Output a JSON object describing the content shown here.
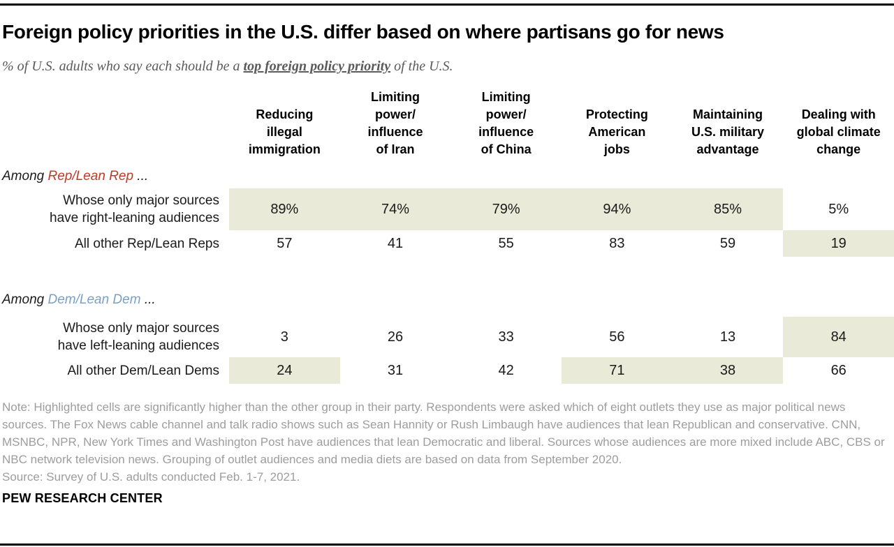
{
  "colors": {
    "highlight": "#e9ebd8",
    "rep": "#bf3a27",
    "dem": "#7aa0c4"
  },
  "header": {
    "title": "Foreign policy priorities in the U.S. differ based on where partisans go for news",
    "subtitle_prefix": "% of U.S. adults who say each should be a ",
    "subtitle_emphasis": "top foreign policy priority",
    "subtitle_suffix": " of the U.S."
  },
  "table": {
    "columns": [
      "Reducing\nillegal\nimmigration",
      "Limiting\npower/\ninfluence\nof Iran",
      "Limiting\npower/\ninfluence\nof China",
      "Protecting\nAmerican\njobs",
      "Maintaining\nU.S. military\nadvantage",
      "Dealing with\nglobal climate\nchange"
    ],
    "groups": [
      {
        "label_prefix": "Among ",
        "label_party": "Rep/Lean Rep",
        "label_suffix": " ...",
        "rows": [
          {
            "label": "Whose only major sources\nhave right-leaning audiences",
            "values": [
              "89%",
              "74%",
              "79%",
              "94%",
              "85%",
              "5%"
            ],
            "highlighted": [
              true,
              true,
              true,
              true,
              true,
              false
            ]
          },
          {
            "label": "All other Rep/Lean Reps",
            "values": [
              "57",
              "41",
              "55",
              "83",
              "59",
              "19"
            ],
            "highlighted": [
              false,
              false,
              false,
              false,
              false,
              true
            ]
          }
        ]
      },
      {
        "label_prefix": "Among ",
        "label_party": "Dem/Lean Dem",
        "label_suffix": " ...",
        "rows": [
          {
            "label": "Whose only major sources\nhave left-leaning audiences",
            "values": [
              "3",
              "26",
              "33",
              "56",
              "13",
              "84"
            ],
            "highlighted": [
              false,
              false,
              false,
              false,
              false,
              true
            ]
          },
          {
            "label": "All other Dem/Lean Dems",
            "values": [
              "24",
              "31",
              "42",
              "71",
              "38",
              "66"
            ],
            "highlighted": [
              true,
              false,
              false,
              true,
              true,
              false
            ]
          }
        ]
      }
    ]
  },
  "notes": {
    "note": "Note: Highlighted cells are significantly higher than the other group in their party. Respondents were asked which of eight outlets they use as major political news sources. The Fox News cable channel and talk radio shows such as Sean Hannity or Rush Limbaugh have audiences that lean Republican and conservative. CNN, MSNBC, NPR, New York Times and Washington Post have audiences that lean Democratic and liberal. Sources whose audiences are more mixed include ABC, CBS or NBC network television news. Grouping of outlet audiences and media diets are based on data from September 2020.",
    "source": "Source: Survey of U.S. adults conducted Feb. 1-7, 2021."
  },
  "footer": {
    "brand": "PEW RESEARCH CENTER"
  },
  "chart_data": {
    "type": "table",
    "title": "Foreign policy priorities in the U.S. differ based on where partisans go for news",
    "subtitle": "% of U.S. adults who say each should be a top foreign policy priority of the U.S.",
    "columns": [
      "Reducing illegal immigration",
      "Limiting power/influence of Iran",
      "Limiting power/influence of China",
      "Protecting American jobs",
      "Maintaining U.S. military advantage",
      "Dealing with global climate change"
    ],
    "groups": [
      {
        "group": "Among Rep/Lean Rep",
        "rows": [
          {
            "label": "Whose only major sources have right-leaning audiences",
            "values": [
              89,
              74,
              79,
              94,
              85,
              5
            ],
            "highlighted": [
              true,
              true,
              true,
              true,
              true,
              false
            ]
          },
          {
            "label": "All other Rep/Lean Reps",
            "values": [
              57,
              41,
              55,
              83,
              59,
              19
            ],
            "highlighted": [
              false,
              false,
              false,
              false,
              false,
              true
            ]
          }
        ]
      },
      {
        "group": "Among Dem/Lean Dem",
        "rows": [
          {
            "label": "Whose only major sources have left-leaning audiences",
            "values": [
              3,
              26,
              33,
              56,
              13,
              84
            ],
            "highlighted": [
              false,
              false,
              false,
              false,
              false,
              true
            ]
          },
          {
            "label": "All other Dem/Lean Dems",
            "values": [
              24,
              31,
              42,
              71,
              38,
              66
            ],
            "highlighted": [
              true,
              false,
              false,
              true,
              true,
              false
            ]
          }
        ]
      }
    ],
    "legend_position": "none",
    "grid": false
  }
}
